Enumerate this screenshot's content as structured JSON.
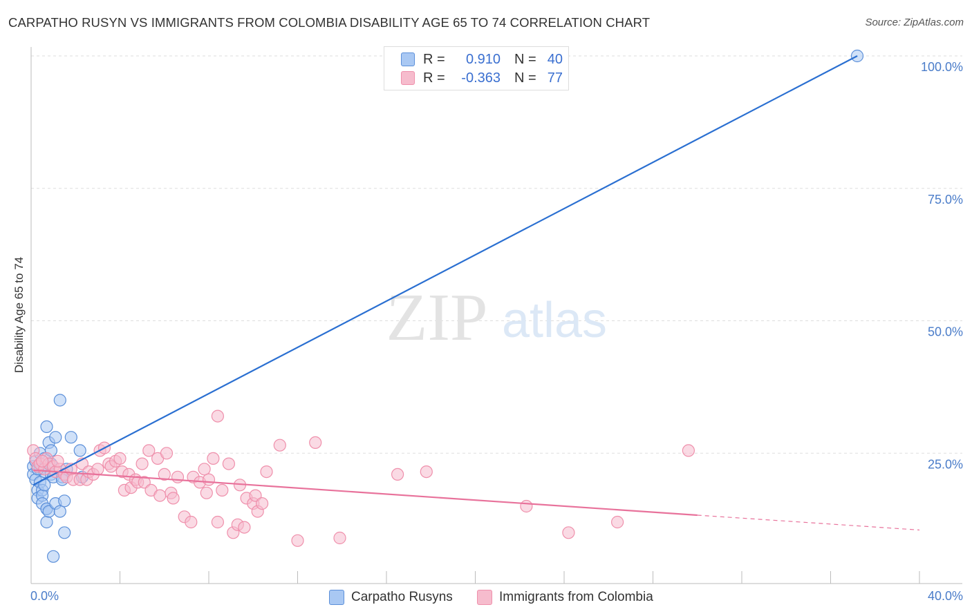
{
  "header": {
    "title": "CARPATHO RUSYN VS IMMIGRANTS FROM COLOMBIA DISABILITY AGE 65 TO 74 CORRELATION CHART",
    "source": "Source: ZipAtlas.com"
  },
  "watermark": {
    "zip": "ZIP",
    "atlas": "atlas"
  },
  "legend": {
    "rows": [
      {
        "r_label": "R =",
        "r_value": "0.910",
        "n_label": "N =",
        "n_value": "40",
        "color": "#a9c8f3"
      },
      {
        "r_label": "R =",
        "r_value": "-0.363",
        "n_label": "N =",
        "n_value": "77",
        "color": "#f6bccd"
      }
    ]
  },
  "bottom_legend": {
    "series1": "Carpatho Rusyns",
    "series2": "Immigrants from Colombia"
  },
  "chart_data": {
    "type": "scatter",
    "title": "CARPATHO RUSYN VS IMMIGRANTS FROM COLOMBIA DISABILITY AGE 65 TO 74 CORRELATION CHART",
    "xlabel": "",
    "ylabel": "Disability Age 65 to 74",
    "xlim": [
      0,
      40
    ],
    "ylim": [
      0,
      102
    ],
    "x_tick_labels": [
      "0.0%",
      "40.0%"
    ],
    "y_tick_labels": [
      "25.0%",
      "50.0%",
      "75.0%",
      "100.0%"
    ],
    "y_ticks": [
      25,
      50,
      75,
      100
    ],
    "series": [
      {
        "name": "Carpatho Rusyns",
        "color": "#5b8fd9",
        "fill": "#a9c8f3",
        "line_color": "#2a6fd1",
        "trend": {
          "x": [
            0.1,
            37.2
          ],
          "y": [
            19.0,
            100.0
          ]
        },
        "points": [
          [
            0.1,
            22.5
          ],
          [
            0.1,
            21.0
          ],
          [
            0.2,
            23.5
          ],
          [
            0.2,
            20.0
          ],
          [
            0.3,
            18.0
          ],
          [
            0.3,
            16.5
          ],
          [
            0.4,
            25.0
          ],
          [
            0.4,
            22.0
          ],
          [
            0.4,
            19.5
          ],
          [
            0.5,
            18.0
          ],
          [
            0.5,
            17.0
          ],
          [
            0.5,
            15.5
          ],
          [
            0.6,
            24.0
          ],
          [
            0.6,
            21.5
          ],
          [
            0.6,
            19.0
          ],
          [
            0.7,
            14.5
          ],
          [
            0.7,
            14.5
          ],
          [
            0.7,
            12.0
          ],
          [
            0.8,
            14.0
          ],
          [
            0.7,
            30.0
          ],
          [
            0.8,
            27.0
          ],
          [
            0.9,
            25.5
          ],
          [
            0.9,
            23.0
          ],
          [
            0.9,
            21.0
          ],
          [
            1.0,
            20.5
          ],
          [
            1.0,
            5.5
          ],
          [
            1.1,
            28.0
          ],
          [
            1.1,
            15.5
          ],
          [
            1.3,
            35.0
          ],
          [
            1.3,
            14.0
          ],
          [
            1.4,
            20.5
          ],
          [
            1.4,
            20.0
          ],
          [
            1.5,
            16.0
          ],
          [
            1.5,
            10.0
          ],
          [
            1.6,
            22.0
          ],
          [
            1.8,
            28.0
          ],
          [
            2.2,
            25.5
          ],
          [
            2.3,
            20.5
          ],
          [
            37.2,
            100.0
          ],
          [
            0.3,
            22.0
          ]
        ]
      },
      {
        "name": "Immigrants from Colombia",
        "color": "#ef8fab",
        "fill": "#f6bccd",
        "line_color": "#e8729b",
        "trend": {
          "x": [
            0.1,
            30.0
          ],
          "y": [
            21.8,
            13.3
          ]
        },
        "trend_dashed": {
          "x": [
            30.0,
            40.0
          ],
          "y": [
            13.3,
            10.5
          ]
        },
        "points": [
          [
            0.1,
            25.5
          ],
          [
            0.2,
            24.0
          ],
          [
            0.3,
            22.5
          ],
          [
            0.4,
            23.0
          ],
          [
            0.6,
            22.0
          ],
          [
            0.7,
            24.0
          ],
          [
            0.8,
            23.0
          ],
          [
            1.0,
            22.5
          ],
          [
            1.1,
            21.5
          ],
          [
            1.3,
            22.0
          ],
          [
            1.5,
            21.0
          ],
          [
            1.6,
            20.5
          ],
          [
            1.8,
            22.0
          ],
          [
            1.9,
            20.0
          ],
          [
            2.2,
            20.0
          ],
          [
            2.3,
            23.0
          ],
          [
            2.5,
            20.0
          ],
          [
            2.6,
            21.5
          ],
          [
            2.8,
            21.0
          ],
          [
            3.0,
            22.0
          ],
          [
            3.1,
            25.5
          ],
          [
            3.3,
            26.0
          ],
          [
            3.5,
            23.0
          ],
          [
            3.6,
            22.5
          ],
          [
            3.8,
            23.5
          ],
          [
            4.0,
            24.0
          ],
          [
            4.1,
            21.5
          ],
          [
            4.2,
            18.0
          ],
          [
            4.4,
            21.0
          ],
          [
            4.5,
            18.5
          ],
          [
            4.7,
            20.0
          ],
          [
            4.8,
            19.5
          ],
          [
            5.0,
            23.0
          ],
          [
            5.1,
            19.5
          ],
          [
            5.3,
            25.5
          ],
          [
            5.4,
            18.0
          ],
          [
            5.7,
            24.0
          ],
          [
            5.8,
            17.0
          ],
          [
            6.0,
            21.0
          ],
          [
            6.1,
            25.0
          ],
          [
            6.3,
            17.5
          ],
          [
            6.4,
            16.5
          ],
          [
            6.6,
            20.5
          ],
          [
            6.9,
            13.0
          ],
          [
            7.2,
            12.0
          ],
          [
            7.3,
            20.5
          ],
          [
            7.6,
            19.5
          ],
          [
            7.8,
            22.0
          ],
          [
            7.9,
            17.5
          ],
          [
            8.0,
            20.0
          ],
          [
            8.2,
            24.0
          ],
          [
            8.4,
            12.0
          ],
          [
            8.4,
            32.0
          ],
          [
            8.6,
            18.0
          ],
          [
            8.9,
            23.0
          ],
          [
            9.1,
            10.0
          ],
          [
            9.3,
            11.5
          ],
          [
            9.4,
            19.0
          ],
          [
            9.6,
            11.0
          ],
          [
            9.7,
            16.5
          ],
          [
            10.0,
            15.5
          ],
          [
            10.1,
            17.0
          ],
          [
            10.2,
            14.0
          ],
          [
            10.4,
            15.5
          ],
          [
            10.6,
            21.5
          ],
          [
            11.2,
            26.5
          ],
          [
            12.0,
            8.5
          ],
          [
            12.8,
            27.0
          ],
          [
            13.9,
            9.0
          ],
          [
            16.5,
            21.0
          ],
          [
            17.8,
            21.5
          ],
          [
            22.3,
            15.0
          ],
          [
            24.2,
            10.0
          ],
          [
            26.4,
            12.0
          ],
          [
            29.6,
            25.5
          ],
          [
            1.2,
            23.5
          ],
          [
            0.5,
            23.5
          ]
        ]
      }
    ]
  }
}
